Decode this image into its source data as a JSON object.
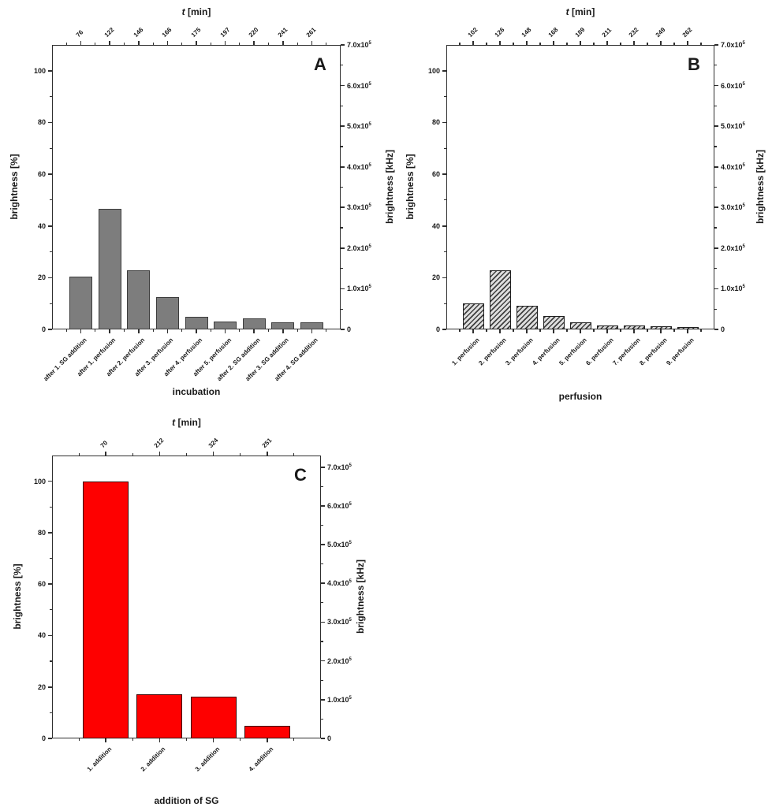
{
  "figure": {
    "background_color": "#ffffff",
    "axis_color": "#2e2e2e",
    "text_color": "#1a1a1a"
  },
  "axes_shared": {
    "left_axis_label": "brightness [%]",
    "right_axis_label": "brightness [kHz]",
    "top_axis_title_var": "t",
    "top_axis_title_unit": " [min]",
    "left_ticks": [
      0,
      20,
      40,
      60,
      80,
      100
    ],
    "left_minor_step": 10,
    "right_ticks": [
      {
        "value": 0,
        "label": "0"
      },
      {
        "value": 100000,
        "label": "1.0x10^5"
      },
      {
        "value": 200000,
        "label": "2.0x10^5"
      },
      {
        "value": 300000,
        "label": "3.0x10^5"
      },
      {
        "value": 400000,
        "label": "4.0x10^5"
      },
      {
        "value": 500000,
        "label": "5.0x10^5"
      },
      {
        "value": 600000,
        "label": "6.0x10^5"
      },
      {
        "value": 700000,
        "label": "7.0x10^5"
      }
    ],
    "right_minor_step": 50000
  },
  "chart_data": [
    {
      "panel": "A",
      "type": "bar",
      "top_axis_title": "t [min]",
      "xlabel": "incubation",
      "ylabel_left": "brightness [%]",
      "ylabel_right": "brightness [kHz]",
      "t_min_top_labels": [
        "76",
        "122",
        "146",
        "166",
        "175",
        "197",
        "220",
        "241",
        "261"
      ],
      "categories": [
        "after 1. SG addition",
        "after 1. perfusion",
        "after 2. perfusion",
        "after 3. perfusion",
        "after 4. perfusion",
        "after 5. perfusion",
        "after 2. SG addition",
        "after 3. SG addition",
        "after 4. SG addition"
      ],
      "values_percent": [
        20.4,
        46.5,
        23,
        12.4,
        5,
        3,
        4.4,
        2.8,
        2.7
      ],
      "ylim_left": [
        0,
        110
      ],
      "ylim_right": [
        0,
        700000
      ],
      "grid": false,
      "bar_fill": "#7d7d7d",
      "bar_edge": "#3c3c3c",
      "hatch": null
    },
    {
      "panel": "B",
      "type": "bar",
      "top_axis_title": "t [min]",
      "xlabel": "perfusion",
      "ylabel_left": "brightness [%]",
      "ylabel_right": "brightness [kHz]",
      "t_min_top_labels": [
        "102",
        "126",
        "148",
        "168",
        "189",
        "211",
        "232",
        "249",
        "262"
      ],
      "categories": [
        "1. perfusion",
        "2. perfusion",
        "3. perfusion",
        "4. perfusion",
        "5. perfusion",
        "6. perfusion",
        "7. perfusion",
        "8. perfusion",
        "9. perfusion"
      ],
      "values_percent": [
        10,
        23,
        9,
        5.3,
        2.8,
        1.5,
        1.5,
        1.2,
        0.9
      ],
      "ylim_left": [
        0,
        110
      ],
      "ylim_right": [
        0,
        700000
      ],
      "grid": false,
      "bar_fill": "#e8e8e8",
      "bar_edge": "#1f1f1f",
      "hatch": {
        "fg": "#3f3f3f",
        "bg": "#dedede",
        "direction": "forward-slash"
      }
    },
    {
      "panel": "C",
      "type": "bar",
      "top_axis_title": "t [min]",
      "xlabel": "addition of SG",
      "ylabel_left": "brightness [%]",
      "ylabel_right": "brightness [kHz]",
      "t_min_top_labels": [
        "70",
        "212",
        "324",
        "251"
      ],
      "categories": [
        "1. addition",
        "2. addition",
        "3. addition",
        "4. addition"
      ],
      "values_percent": [
        100,
        17.3,
        16.3,
        4.9
      ],
      "ylim_left": [
        0,
        110
      ],
      "ylim_right": [
        0,
        730000
      ],
      "grid": false,
      "bar_fill": "#fe0000",
      "bar_edge": "#3a0000",
      "hatch": null
    }
  ]
}
